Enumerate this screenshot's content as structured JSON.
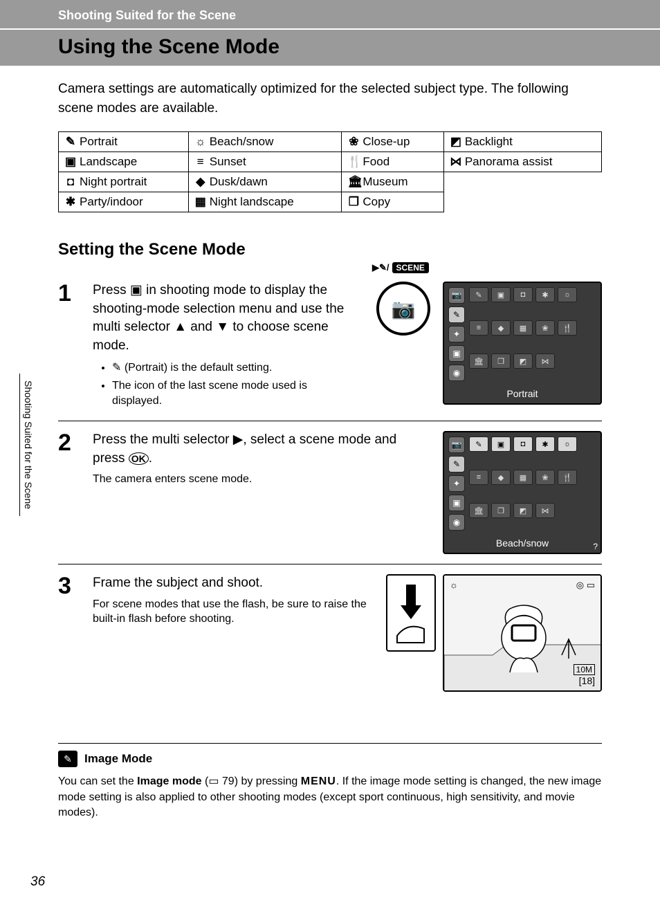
{
  "breadcrumb": "Shooting Suited for the Scene",
  "title": "Using the Scene Mode",
  "intro": "Camera settings are automatically optimized for the selected subject type. The following scene modes are available.",
  "modes_table": {
    "columns": 4,
    "rows": [
      [
        {
          "icon": "✎",
          "label": "Portrait"
        },
        {
          "icon": "☼",
          "label": "Beach/snow"
        },
        {
          "icon": "❀",
          "label": "Close-up"
        },
        {
          "icon": "◩",
          "label": "Backlight"
        }
      ],
      [
        {
          "icon": "▣",
          "label": "Landscape"
        },
        {
          "icon": "≡",
          "label": "Sunset"
        },
        {
          "icon": "🍴",
          "label": "Food"
        },
        {
          "icon": "⋈",
          "label": "Panorama assist"
        }
      ],
      [
        {
          "icon": "◘",
          "label": "Night portrait"
        },
        {
          "icon": "◆",
          "label": "Dusk/dawn"
        },
        {
          "icon": "🏛",
          "label": "Museum"
        },
        null
      ],
      [
        {
          "icon": "✱",
          "label": "Party/indoor"
        },
        {
          "icon": "▦",
          "label": "Night landscape"
        },
        {
          "icon": "❐",
          "label": "Copy"
        },
        null
      ]
    ]
  },
  "subhead": "Setting the Scene Mode",
  "steps": [
    {
      "num": "1",
      "instr_pre": "Press ",
      "instr_icon": "▣",
      "instr_mid": " in shooting mode to display the shooting-mode selection menu and use the multi selector ",
      "instr_up": "▲",
      "instr_and": " and ",
      "instr_down": "▼",
      "instr_post": " to choose scene mode.",
      "bullet1_pre": "",
      "bullet1_icon": "✎",
      "bullet1_post": " (Portrait) is the default setting.",
      "bullet2": "The icon of the last scene mode used is displayed.",
      "screen_label": "Portrait",
      "scene_label": "SCENE"
    },
    {
      "num": "2",
      "instr_pre": "Press the multi selector ",
      "instr_icon": "▶",
      "instr_mid": ", select a scene mode and press ",
      "ok_label": "OK",
      "instr_post": ".",
      "sub": "The camera enters scene mode.",
      "screen_label": "Beach/snow"
    },
    {
      "num": "3",
      "instr": "Frame the subject and shoot.",
      "sub": "For scene modes that use the flash, be sure to raise the built-in flash before shooting.",
      "photo_count": "18",
      "photo_badge": "10M"
    }
  ],
  "note": {
    "icon": "✎",
    "title": "Image Mode",
    "body_pre": "You can set the ",
    "body_bold": "Image mode",
    "body_ref_pre": " (",
    "body_ref_icon": "▭",
    "body_ref_num": " 79",
    "body_ref_post": ") by pressing ",
    "menu": "MENU",
    "body_post": ". If the image mode setting is changed, the new image mode setting is also applied to other shooting modes (except sport continuous, high sensitivity, and movie modes)."
  },
  "page_number": "36",
  "side_tab": "Shooting Suited for the Scene",
  "colors": {
    "header_band": "#9a9a9a",
    "screen_bg": "#3a3a3a",
    "sidebar_icon": "#707070",
    "grid_cell": "#555555"
  }
}
